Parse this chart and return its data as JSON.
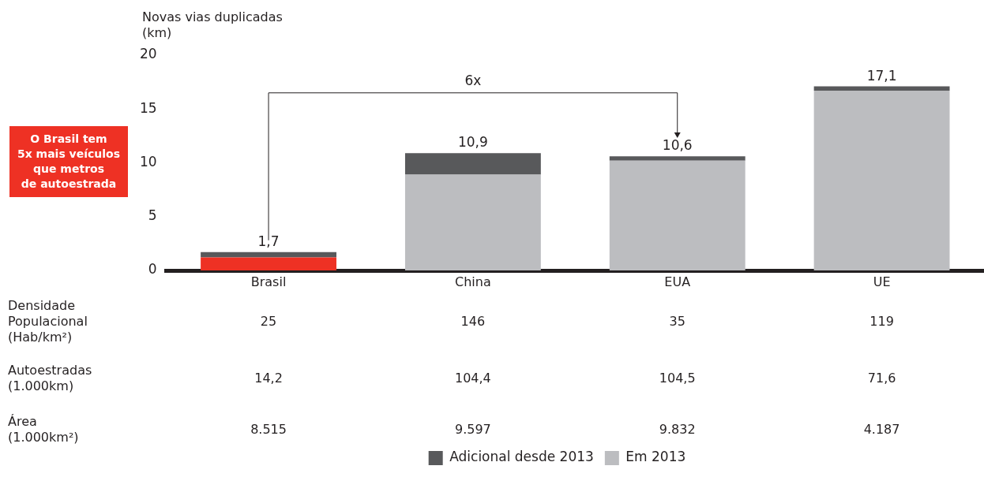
{
  "chart_data": {
    "type": "bar",
    "stacked": true,
    "ylabel": "Novas vias duplicadas\n(km)",
    "categories": [
      "Brasil",
      "China",
      "EUA",
      "UE"
    ],
    "series": [
      {
        "name": "Em 2013",
        "color": "#bcbdc0",
        "colors": [
          "#ee3124",
          "#bcbdc0",
          "#bcbdc0",
          "#bcbdc0"
        ],
        "values": [
          1.2,
          8.9,
          10.2,
          16.7
        ]
      },
      {
        "name": "Adicional desde 2013",
        "color": "#58595b",
        "values": [
          0.5,
          2.0,
          0.4,
          0.4
        ]
      }
    ],
    "totals": [
      "1,7",
      "10,9",
      "10,6",
      "17,1"
    ],
    "ylim": [
      0,
      20
    ],
    "yticks": [
      0,
      5,
      10,
      15,
      20
    ],
    "grid": false,
    "legend": "bottom",
    "annotations": [
      "O Brasil tem\n5x mais veículos\nque metros\nde autoestrada",
      "6x",
      "Densidade\nPopulacional\n(Hab/km²)",
      "25",
      "146",
      "35",
      "119",
      "Autoestradas\n(1.000km)",
      "14,2",
      "104,4",
      "104,5",
      "71,6",
      "Área\n(1.000km²)",
      "8.515",
      "9.597",
      "9.832",
      "4.187"
    ]
  }
}
